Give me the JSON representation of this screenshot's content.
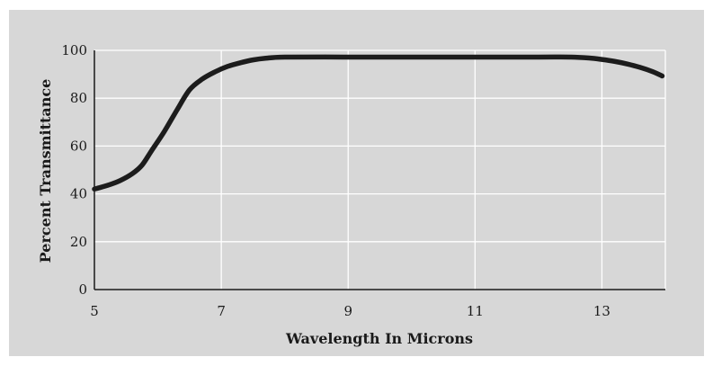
{
  "chart_data": {
    "type": "line",
    "title": "",
    "xlabel": "Wavelength In Microns",
    "ylabel": "Percent Transmittance",
    "xlim": [
      5,
      14
    ],
    "ylim": [
      0,
      100
    ],
    "x_ticks": [
      5,
      7,
      9,
      11,
      13
    ],
    "y_ticks": [
      0,
      20,
      40,
      60,
      80,
      100
    ],
    "x_tick_labels": [
      "5",
      "7",
      "9",
      "11",
      "13"
    ],
    "y_tick_labels": [
      "0",
      "20",
      "40",
      "60",
      "80",
      "100"
    ],
    "grid": true,
    "background_color": "#d7d7d7",
    "grid_color": "#ffffff",
    "line_color": "#1c1c1c",
    "series": [
      {
        "x": [
          5.0,
          5.2,
          5.4,
          5.6,
          5.75,
          5.9,
          6.1,
          6.3,
          6.5,
          6.7,
          6.9,
          7.1,
          7.3,
          7.5,
          7.7,
          8.0,
          9.0,
          10.0,
          11.0,
          12.0,
          12.5,
          12.8,
          13.0,
          13.2,
          13.4,
          13.6,
          13.8,
          13.95
        ],
        "y": [
          42,
          43.5,
          45.5,
          48.5,
          52,
          58,
          66,
          75,
          83.5,
          88,
          91,
          93.3,
          94.8,
          96,
          96.7,
          97.2,
          97.2,
          97.2,
          97.2,
          97.2,
          97.2,
          96.8,
          96.2,
          95.4,
          94.3,
          92.9,
          91.1,
          89.3
        ]
      }
    ]
  }
}
